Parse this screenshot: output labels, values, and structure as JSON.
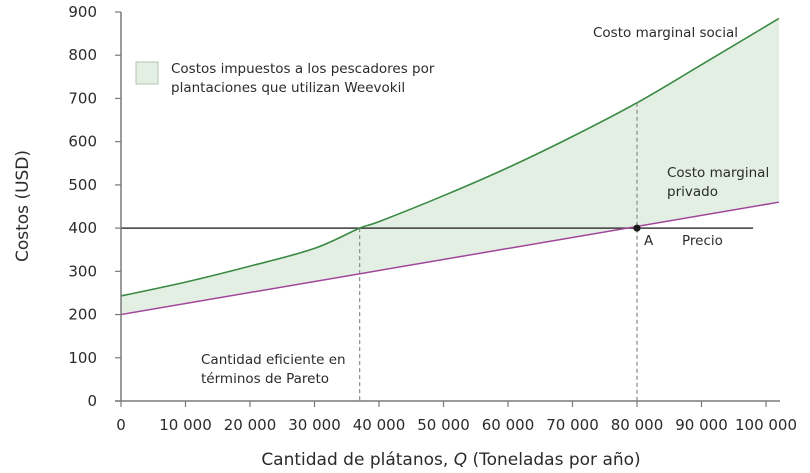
{
  "chart_data": {
    "type": "line",
    "title": "",
    "xlabel": "Cantidad de plátanos, Q (Toneladas por año)",
    "xlabel_parts": {
      "before": "Cantidad de plátanos, ",
      "italic": "Q",
      "after": " (Toneladas por año)"
    },
    "ylabel": "Costos (USD)",
    "xlim": [
      0,
      102000
    ],
    "ylim": [
      0,
      900
    ],
    "x_ticks": [
      "0",
      "10 000",
      "20 000",
      "30 000",
      "40 000",
      "50 000",
      "60 000",
      "70 000",
      "80 000",
      "90 000",
      "100 000"
    ],
    "y_ticks": [
      "0",
      "100",
      "200",
      "300",
      "400",
      "500",
      "600",
      "700",
      "800",
      "900"
    ],
    "grid": false,
    "series": [
      {
        "name": "Costo marginal social",
        "color": "#3a8a44",
        "x": [
          0,
          10000,
          20000,
          30000,
          37000,
          40000,
          50000,
          60000,
          70000,
          80000,
          90000,
          102000
        ],
        "values": [
          243,
          275,
          312,
          353,
          400,
          415,
          475,
          540,
          612,
          690,
          778,
          885
        ]
      },
      {
        "name": "Costo marginal privado",
        "color": "#a0459a",
        "x": [
          0,
          80000,
          102000
        ],
        "values": [
          200,
          400,
          460
        ]
      },
      {
        "name": "Precio",
        "color": "#3a3a3a",
        "x": [
          0,
          98000
        ],
        "values": [
          400,
          400
        ]
      }
    ],
    "shaded_area": {
      "label": "Costos impuestos a los pescadores por plantaciones que utilizan Weevokil",
      "color": "#e2efe2",
      "between": [
        "Costo marginal privado",
        "Costo marginal social"
      ]
    },
    "vlines": [
      {
        "x": 37000,
        "label": "Cantidad eficiente en términos de Pareto"
      },
      {
        "x": 80000
      }
    ],
    "points": [
      {
        "name": "A",
        "x": 80000,
        "y": 400
      }
    ],
    "annotations": {
      "social": "Costo marginal social",
      "private_line1": "Costo marginal",
      "private_line2": "privado",
      "price": "Precio",
      "point_a": "A",
      "pareto_line1": "Cantidad eficiente en",
      "pareto_line2": "términos de Pareto"
    },
    "legend": {
      "position": "top-left",
      "line1": "Costos impuestos a los pescadores por",
      "line2": "plantaciones que utilizan Weevokil"
    }
  }
}
